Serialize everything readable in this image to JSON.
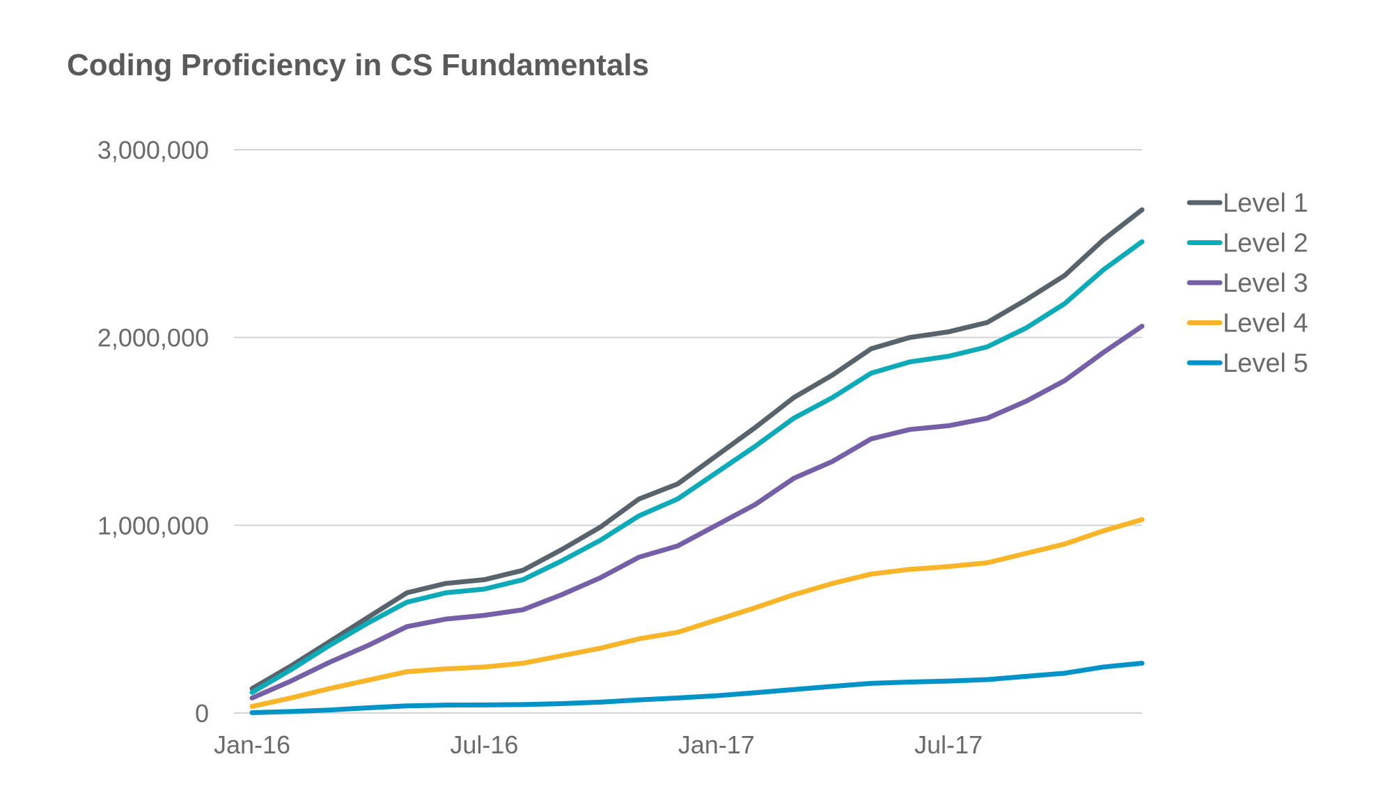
{
  "chart_data": {
    "type": "line",
    "title": "Coding Proficiency in CS Fundamentals",
    "xlabel": "",
    "ylabel": "",
    "x": [
      "Jan-16",
      "Feb-16",
      "Mar-16",
      "Apr-16",
      "May-16",
      "Jun-16",
      "Jul-16",
      "Aug-16",
      "Sep-16",
      "Oct-16",
      "Nov-16",
      "Dec-16",
      "Jan-17",
      "Feb-17",
      "Mar-17",
      "Apr-17",
      "May-17",
      "Jun-17",
      "Jul-17",
      "Aug-17",
      "Sep-17",
      "Oct-17",
      "Nov-17",
      "Dec-17"
    ],
    "x_tick_labels": [
      {
        "index": 0,
        "label": "Jan-16"
      },
      {
        "index": 6,
        "label": "Jul-16"
      },
      {
        "index": 12,
        "label": "Jan-17"
      },
      {
        "index": 18,
        "label": "Jul-17"
      }
    ],
    "ylim": [
      0,
      3000000
    ],
    "y_ticks": [
      {
        "value": 0,
        "label": "0"
      },
      {
        "value": 1000000,
        "label": "1,000,000"
      },
      {
        "value": 2000000,
        "label": "2,000,000"
      },
      {
        "value": 3000000,
        "label": "3,000,000"
      }
    ],
    "grid": true,
    "legend_position": "right",
    "series": [
      {
        "name": "Level 1",
        "color": "#58636B",
        "values": [
          130000,
          250000,
          380000,
          510000,
          640000,
          690000,
          710000,
          760000,
          870000,
          990000,
          1140000,
          1220000,
          1370000,
          1520000,
          1680000,
          1800000,
          1940000,
          2000000,
          2030000,
          2080000,
          2200000,
          2330000,
          2520000,
          2680000
        ]
      },
      {
        "name": "Level 2",
        "color": "#0FAAB8",
        "values": [
          110000,
          230000,
          360000,
          480000,
          590000,
          640000,
          660000,
          710000,
          810000,
          920000,
          1050000,
          1140000,
          1280000,
          1420000,
          1570000,
          1680000,
          1810000,
          1870000,
          1900000,
          1950000,
          2050000,
          2180000,
          2360000,
          2510000
        ]
      },
      {
        "name": "Level 3",
        "color": "#7560A8",
        "values": [
          80000,
          170000,
          270000,
          360000,
          460000,
          500000,
          520000,
          550000,
          630000,
          720000,
          830000,
          890000,
          1000000,
          1110000,
          1250000,
          1340000,
          1460000,
          1510000,
          1530000,
          1570000,
          1660000,
          1770000,
          1920000,
          2060000
        ]
      },
      {
        "name": "Level 4",
        "color": "#F8B52A",
        "values": [
          35000,
          80000,
          130000,
          175000,
          220000,
          235000,
          245000,
          265000,
          305000,
          345000,
          395000,
          430000,
          495000,
          560000,
          630000,
          690000,
          740000,
          765000,
          780000,
          800000,
          850000,
          900000,
          970000,
          1030000
        ]
      },
      {
        "name": "Level 5",
        "color": "#0093C8",
        "values": [
          2000,
          8000,
          16000,
          28000,
          38000,
          42000,
          43000,
          45000,
          50000,
          58000,
          70000,
          80000,
          92000,
          108000,
          125000,
          142000,
          158000,
          165000,
          170000,
          178000,
          195000,
          212000,
          245000,
          265000
        ]
      }
    ]
  }
}
